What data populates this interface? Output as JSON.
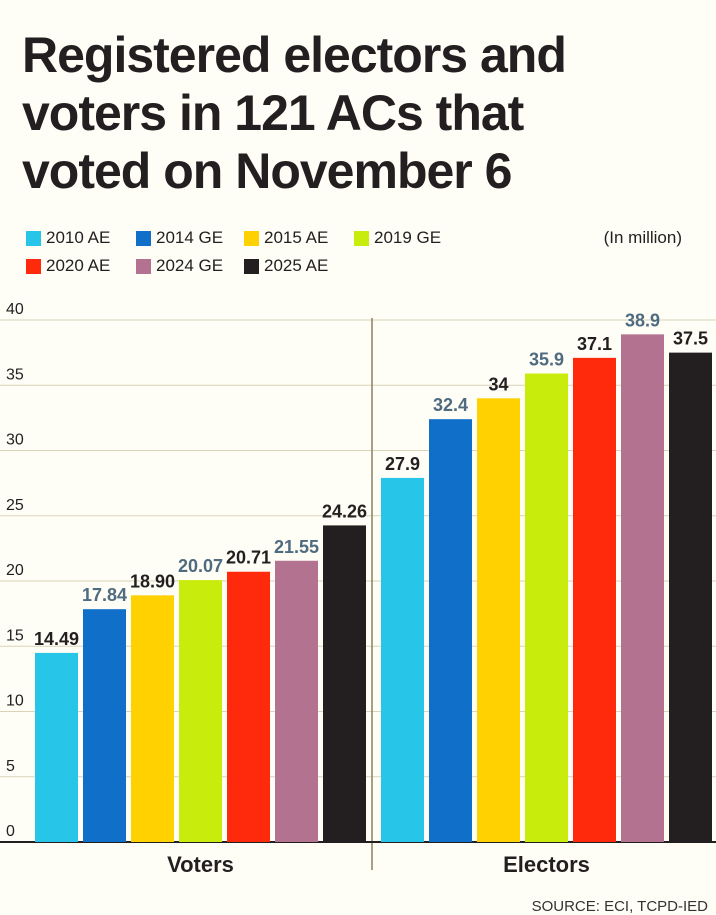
{
  "title_lines": [
    "Registered electors and",
    "voters in 121 ACs that",
    "voted on November 6"
  ],
  "unit": "(In million)",
  "source": "SOURCE: ECI, TCPD-IED",
  "chart_data": {
    "type": "bar",
    "title": "Registered electors and voters in 121 ACs that voted on November 6",
    "categories": [
      "Voters",
      "Electors"
    ],
    "series": [
      {
        "name": "2010 AE",
        "color": "#27c6e8",
        "labels": [
          "14.49",
          "27.9"
        ],
        "values": [
          14.49,
          27.9
        ],
        "label_color": "#231f20"
      },
      {
        "name": "2014 GE",
        "color": "#0f6fc9",
        "labels": [
          "17.84",
          "32.4"
        ],
        "values": [
          17.84,
          32.4
        ],
        "label_color": "#4f6b80"
      },
      {
        "name": "2015 AE",
        "color": "#ffd100",
        "labels": [
          "18.90",
          "34"
        ],
        "values": [
          18.9,
          34
        ],
        "label_color": "#231f20"
      },
      {
        "name": "2019 GE",
        "color": "#c8ec0c",
        "labels": [
          "20.07",
          "35.9"
        ],
        "values": [
          20.07,
          35.9
        ],
        "label_color": "#4f6b80"
      },
      {
        "name": "2020 AE",
        "color": "#ff2a0c",
        "labels": [
          "20.71",
          "37.1"
        ],
        "values": [
          20.71,
          37.1
        ],
        "label_color": "#231f20"
      },
      {
        "name": "2024 GE",
        "color": "#b3728f",
        "labels": [
          "21.55",
          "38.9"
        ],
        "values": [
          21.55,
          38.9
        ],
        "label_color": "#4f6b80"
      },
      {
        "name": "2025 AE",
        "color": "#231f20",
        "labels": [
          "24.26",
          "37.5"
        ],
        "values": [
          24.26,
          37.5
        ],
        "label_color": "#231f20"
      }
    ],
    "ylim": [
      0,
      40
    ],
    "yticks": [
      "0",
      "5",
      "10",
      "15",
      "20",
      "25",
      "30",
      "35",
      "40"
    ],
    "grid": true,
    "legend": "top",
    "xlabel": "",
    "ylabel": ""
  }
}
